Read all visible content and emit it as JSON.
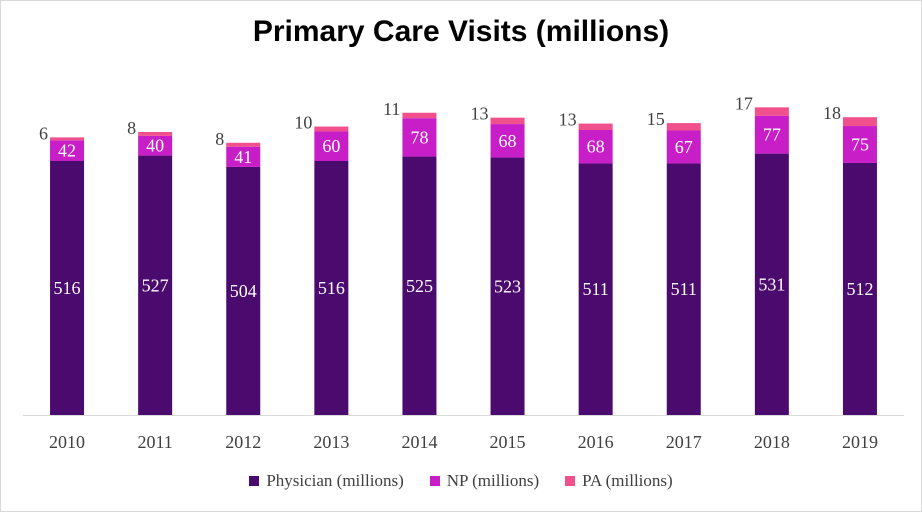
{
  "chart_data": {
    "type": "bar",
    "stacked": true,
    "title": "Primary Care Visits (millions)",
    "categories": [
      "2010",
      "2011",
      "2012",
      "2013",
      "2014",
      "2015",
      "2016",
      "2017",
      "2018",
      "2019"
    ],
    "series": [
      {
        "name": "Physician (millions)",
        "color": "#4b0a6e",
        "values": [
          516,
          527,
          504,
          516,
          525,
          523,
          511,
          511,
          531,
          512
        ]
      },
      {
        "name": "NP (millions)",
        "color": "#c81ec8",
        "values": [
          42,
          40,
          41,
          60,
          78,
          68,
          68,
          67,
          77,
          75
        ]
      },
      {
        "name": "PA (millions)",
        "color": "#f0508c",
        "values": [
          6,
          8,
          8,
          10,
          11,
          13,
          13,
          15,
          17,
          18
        ]
      }
    ],
    "ylim": [
      0,
      600
    ],
    "grid": false,
    "legend_position": "bottom",
    "xlabel": "",
    "ylabel": ""
  }
}
